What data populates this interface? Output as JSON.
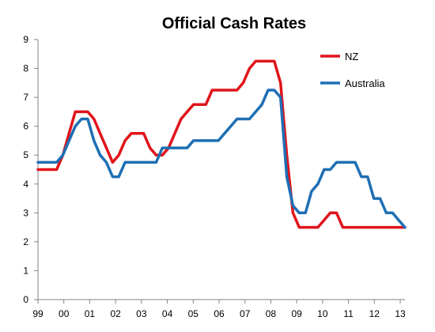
{
  "chart_data": {
    "type": "line",
    "title": "Official Cash Rates",
    "xlabel": "",
    "ylabel": "",
    "xlim": [
      0,
      59
    ],
    "ylim": [
      0,
      9
    ],
    "y_ticks": [
      0,
      1,
      2,
      3,
      4,
      5,
      6,
      7,
      8,
      9
    ],
    "x_tick_labels": [
      "99",
      "00",
      "01",
      "02",
      "03",
      "04",
      "05",
      "06",
      "07",
      "08",
      "09",
      "10",
      "11",
      "12",
      "13"
    ],
    "grid": false,
    "legend_position": "top-right",
    "series": [
      {
        "name": "NZ",
        "color": "#e0141b",
        "points": [
          [
            0,
            4.5
          ],
          [
            1,
            4.5
          ],
          [
            2,
            4.5
          ],
          [
            3,
            4.5
          ],
          [
            4,
            5.0
          ],
          [
            5,
            5.75
          ],
          [
            6,
            6.5
          ],
          [
            7,
            6.5
          ],
          [
            8,
            6.5
          ],
          [
            9,
            6.25
          ],
          [
            10,
            5.75
          ],
          [
            11,
            5.25
          ],
          [
            12,
            4.75
          ],
          [
            13,
            5.0
          ],
          [
            14,
            5.5
          ],
          [
            15,
            5.75
          ],
          [
            16,
            5.75
          ],
          [
            17,
            5.75
          ],
          [
            18,
            5.25
          ],
          [
            19,
            5.0
          ],
          [
            20,
            5.0
          ],
          [
            21,
            5.25
          ],
          [
            22,
            5.75
          ],
          [
            23,
            6.25
          ],
          [
            24,
            6.5
          ],
          [
            25,
            6.75
          ],
          [
            26,
            6.75
          ],
          [
            27,
            6.75
          ],
          [
            28,
            7.25
          ],
          [
            29,
            7.25
          ],
          [
            30,
            7.25
          ],
          [
            31,
            7.25
          ],
          [
            32,
            7.25
          ],
          [
            33,
            7.5
          ],
          [
            34,
            8.0
          ],
          [
            35,
            8.25
          ],
          [
            36,
            8.25
          ],
          [
            37,
            8.25
          ],
          [
            38,
            8.25
          ],
          [
            39,
            7.5
          ],
          [
            40,
            5.0
          ],
          [
            41,
            3.0
          ],
          [
            42,
            2.5
          ],
          [
            43,
            2.5
          ],
          [
            44,
            2.5
          ],
          [
            45,
            2.5
          ],
          [
            46,
            2.75
          ],
          [
            47,
            3.0
          ],
          [
            48,
            3.0
          ],
          [
            49,
            2.5
          ],
          [
            50,
            2.5
          ],
          [
            51,
            2.5
          ],
          [
            52,
            2.5
          ],
          [
            53,
            2.5
          ],
          [
            54,
            2.5
          ],
          [
            55,
            2.5
          ],
          [
            56,
            2.5
          ],
          [
            57,
            2.5
          ],
          [
            58,
            2.5
          ],
          [
            59,
            2.5
          ]
        ]
      },
      {
        "name": "Australia",
        "color": "#1f6fb4",
        "points": [
          [
            0,
            4.75
          ],
          [
            1,
            4.75
          ],
          [
            2,
            4.75
          ],
          [
            3,
            4.75
          ],
          [
            4,
            5.0
          ],
          [
            5,
            5.5
          ],
          [
            6,
            6.0
          ],
          [
            7,
            6.25
          ],
          [
            8,
            6.25
          ],
          [
            9,
            5.5
          ],
          [
            10,
            5.0
          ],
          [
            11,
            4.75
          ],
          [
            12,
            4.25
          ],
          [
            13,
            4.25
          ],
          [
            14,
            4.75
          ],
          [
            15,
            4.75
          ],
          [
            16,
            4.75
          ],
          [
            17,
            4.75
          ],
          [
            18,
            4.75
          ],
          [
            19,
            4.75
          ],
          [
            20,
            5.25
          ],
          [
            21,
            5.25
          ],
          [
            22,
            5.25
          ],
          [
            23,
            5.25
          ],
          [
            24,
            5.25
          ],
          [
            25,
            5.5
          ],
          [
            26,
            5.5
          ],
          [
            27,
            5.5
          ],
          [
            28,
            5.5
          ],
          [
            29,
            5.5
          ],
          [
            30,
            5.75
          ],
          [
            31,
            6.0
          ],
          [
            32,
            6.25
          ],
          [
            33,
            6.25
          ],
          [
            34,
            6.25
          ],
          [
            35,
            6.5
          ],
          [
            36,
            6.75
          ],
          [
            37,
            7.25
          ],
          [
            38,
            7.25
          ],
          [
            39,
            7.0
          ],
          [
            40,
            4.25
          ],
          [
            41,
            3.25
          ],
          [
            42,
            3.0
          ],
          [
            43,
            3.0
          ],
          [
            44,
            3.75
          ],
          [
            45,
            4.0
          ],
          [
            46,
            4.5
          ],
          [
            47,
            4.5
          ],
          [
            48,
            4.75
          ],
          [
            49,
            4.75
          ],
          [
            50,
            4.75
          ],
          [
            51,
            4.75
          ],
          [
            52,
            4.25
          ],
          [
            53,
            4.25
          ],
          [
            54,
            3.5
          ],
          [
            55,
            3.5
          ],
          [
            56,
            3.0
          ],
          [
            57,
            3.0
          ],
          [
            58,
            2.75
          ],
          [
            59,
            2.5
          ]
        ]
      }
    ]
  }
}
